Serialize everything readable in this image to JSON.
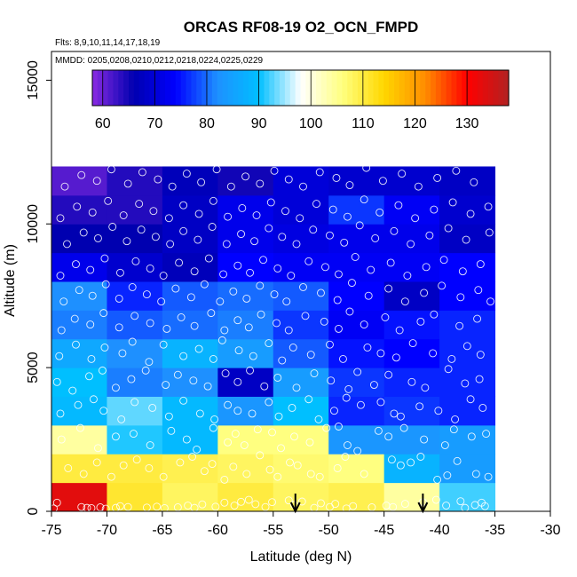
{
  "chart_data": {
    "type": "heatmap",
    "title": "ORCAS RF08-19 O2_OCN_FMPD",
    "annotations": {
      "flights": "Flts: 8,9,10,11,14,17,18,19",
      "dates": "MMDD: 0205,0208,0210,0212,0218,0224,0225,0229"
    },
    "xlabel": "Latitude (deg N)",
    "ylabel": "Altitude (m)",
    "xlim": [
      -75,
      -30
    ],
    "ylim": [
      0,
      16000
    ],
    "xticks": [
      -75,
      -70,
      -65,
      -60,
      -55,
      -50,
      -45,
      -40,
      -35,
      -30
    ],
    "xtick_labels": [
      "-75",
      "-70",
      "-65",
      "-60",
      "-55",
      "-50",
      "-45",
      "-40",
      "-35",
      "-30"
    ],
    "yticks": [
      0,
      5000,
      10000,
      15000
    ],
    "ytick_labels": [
      "0",
      "5000",
      "10000",
      "15000"
    ],
    "colorbar": {
      "min": 58,
      "max": 138,
      "ticks": [
        60,
        70,
        80,
        90,
        100,
        110,
        120,
        130
      ],
      "tick_labels": [
        "60",
        "70",
        "80",
        "90",
        "100",
        "110",
        "120",
        "130"
      ],
      "colors": [
        "#8a2be2",
        "#0000b0",
        "#0000ff",
        "#1e90ff",
        "#00bfff",
        "#ffffff",
        "#ffff80",
        "#ffd700",
        "#ff8c00",
        "#ff0000",
        "#b22222"
      ]
    },
    "lat_bins": [
      -75,
      -70,
      -65,
      -60,
      -55,
      -50,
      -45,
      -40,
      -35
    ],
    "alt_bins": [
      0,
      1000,
      2000,
      3000,
      4000,
      5000,
      6000,
      7000,
      8000,
      9000,
      10000,
      11000,
      12000
    ],
    "cells_by_altitude_row_from_bottom": [
      [
        133,
        111,
        108,
        110,
        108,
        109,
        104,
        92
      ],
      [
        110,
        110,
        109,
        108,
        107,
        106,
        88,
        84
      ],
      [
        104,
        91,
        89,
        106,
        106,
        83,
        83,
        84
      ],
      [
        89,
        93,
        89,
        83,
        90,
        76,
        77,
        76
      ],
      [
        90,
        81,
        82,
        68,
        84,
        77,
        76,
        76
      ],
      [
        86,
        82,
        88,
        84,
        79,
        75,
        74,
        76
      ],
      [
        81,
        79,
        80,
        81,
        77,
        73,
        75,
        76
      ],
      [
        82,
        76,
        79,
        80,
        79,
        74,
        68,
        74
      ],
      [
        72,
        69,
        67,
        74,
        73,
        73,
        73,
        74
      ],
      [
        66,
        66,
        68,
        72,
        71,
        72,
        72,
        68
      ],
      [
        64,
        64,
        68,
        72,
        70,
        77,
        73,
        69
      ],
      [
        61,
        64,
        67,
        65,
        70,
        69,
        69,
        68
      ]
    ],
    "sample_points": [
      [
        -74.8,
        100
      ],
      [
        -74.5,
        300
      ],
      [
        -72.3,
        150
      ],
      [
        -71.8,
        120
      ],
      [
        -71.4,
        110
      ],
      [
        -70.6,
        140
      ],
      [
        -70.1,
        90
      ],
      [
        -69.2,
        120
      ],
      [
        -68.8,
        180
      ],
      [
        -68.1,
        150
      ],
      [
        -66.4,
        130
      ],
      [
        -65.5,
        160
      ],
      [
        -64.8,
        110
      ],
      [
        -63.6,
        140
      ],
      [
        -62.7,
        200
      ],
      [
        -62.1,
        120
      ],
      [
        -61.4,
        240
      ],
      [
        -60.2,
        160
      ],
      [
        -59.4,
        300
      ],
      [
        -58.5,
        200
      ],
      [
        -57.9,
        330
      ],
      [
        -57.2,
        400
      ],
      [
        -56.6,
        250
      ],
      [
        -55.7,
        150
      ],
      [
        -55.1,
        320
      ],
      [
        -53.6,
        380
      ],
      [
        -53.1,
        220
      ],
      [
        -52.4,
        340
      ],
      [
        -51.3,
        120
      ],
      [
        -50.7,
        280
      ],
      [
        -49.9,
        150
      ],
      [
        -49.4,
        260
      ],
      [
        -48.4,
        100
      ],
      [
        -47.8,
        180
      ],
      [
        -46.1,
        140
      ],
      [
        -44.8,
        200
      ],
      [
        -44.2,
        150
      ],
      [
        -43.1,
        260
      ],
      [
        -41.5,
        320
      ],
      [
        -40.3,
        400
      ],
      [
        -39.4,
        200
      ],
      [
        -38.1,
        350
      ],
      [
        -37.7,
        120
      ],
      [
        -36.8,
        220
      ],
      [
        -36.2,
        300
      ],
      [
        -35.9,
        180
      ],
      [
        -73.5,
        1500
      ],
      [
        -72.1,
        1300
      ],
      [
        -70.9,
        1700
      ],
      [
        -69.6,
        1200
      ],
      [
        -68.5,
        1600
      ],
      [
        -67.3,
        1800
      ],
      [
        -66.2,
        1500
      ],
      [
        -64.9,
        1200
      ],
      [
        -63.4,
        1700
      ],
      [
        -62.3,
        1900
      ],
      [
        -61.2,
        1400
      ],
      [
        -60.5,
        1650
      ],
      [
        -59.4,
        1100
      ],
      [
        -58.6,
        1550
      ],
      [
        -57.4,
        1300
      ],
      [
        -56.2,
        1950
      ],
      [
        -55.3,
        1450
      ],
      [
        -54.6,
        1200
      ],
      [
        -53.5,
        1700
      ],
      [
        -52.8,
        1600
      ],
      [
        -51.6,
        1300
      ],
      [
        -50.8,
        1200
      ],
      [
        -49.2,
        1500
      ],
      [
        -48.5,
        1900
      ],
      [
        -46.8,
        1300
      ],
      [
        -44.3,
        1800
      ],
      [
        -43.5,
        1600
      ],
      [
        -42.6,
        1700
      ],
      [
        -41.7,
        1900
      ],
      [
        -40.2,
        1100
      ],
      [
        -39.3,
        1250
      ],
      [
        -38.4,
        1750
      ],
      [
        -36.7,
        1300
      ],
      [
        -35.6,
        1200
      ],
      [
        -74.1,
        2500
      ],
      [
        -72.4,
        2900
      ],
      [
        -70.8,
        2200
      ],
      [
        -69.2,
        2600
      ],
      [
        -67.6,
        2700
      ],
      [
        -66.1,
        2300
      ],
      [
        -64.2,
        2800
      ],
      [
        -62.8,
        2500
      ],
      [
        -61.9,
        2150
      ],
      [
        -60.4,
        2900
      ],
      [
        -59.1,
        2400
      ],
      [
        -58.4,
        2700
      ],
      [
        -57.6,
        2300
      ],
      [
        -56.4,
        2850
      ],
      [
        -55.1,
        2750
      ],
      [
        -54.3,
        2200
      ],
      [
        -53.1,
        2600
      ],
      [
        -51.7,
        2400
      ],
      [
        -50.2,
        2900
      ],
      [
        -49.1,
        2950
      ],
      [
        -48.3,
        2300
      ],
      [
        -47.4,
        2100
      ],
      [
        -45.5,
        2800
      ],
      [
        -44.6,
        2600
      ],
      [
        -43.2,
        2900
      ],
      [
        -41.4,
        2500
      ],
      [
        -39.5,
        2300
      ],
      [
        -38.7,
        2850
      ],
      [
        -37.1,
        2600
      ],
      [
        -35.8,
        2700
      ],
      [
        -74.2,
        3400
      ],
      [
        -72.6,
        3700
      ],
      [
        -71.2,
        3900
      ],
      [
        -70.3,
        3500
      ],
      [
        -68.7,
        3200
      ],
      [
        -67.5,
        3800
      ],
      [
        -65.9,
        3600
      ],
      [
        -64.4,
        3300
      ],
      [
        -63.1,
        3850
      ],
      [
        -61.6,
        3400
      ],
      [
        -60.3,
        3200
      ],
      [
        -59.1,
        3700
      ],
      [
        -58.2,
        3500
      ],
      [
        -56.9,
        3400
      ],
      [
        -55.4,
        3800
      ],
      [
        -54.5,
        3300
      ],
      [
        -53.3,
        3600
      ],
      [
        -51.8,
        3900
      ],
      [
        -50.9,
        3200
      ],
      [
        -49.5,
        3500
      ],
      [
        -48.4,
        3950
      ],
      [
        -47.1,
        3700
      ],
      [
        -45.3,
        3800
      ],
      [
        -44.1,
        3400
      ],
      [
        -43.5,
        3300
      ],
      [
        -41.8,
        3650
      ],
      [
        -40.1,
        3500
      ],
      [
        -38.6,
        3200
      ],
      [
        -37.2,
        3900
      ],
      [
        -36.1,
        3600
      ],
      [
        -74.5,
        4500
      ],
      [
        -73.1,
        4200
      ],
      [
        -71.6,
        4700
      ],
      [
        -70.4,
        4900
      ],
      [
        -69.2,
        4300
      ],
      [
        -67.8,
        4600
      ],
      [
        -66.5,
        4900
      ],
      [
        -64.7,
        4400
      ],
      [
        -63.6,
        4750
      ],
      [
        -62.2,
        4550
      ],
      [
        -60.9,
        4350
      ],
      [
        -59.3,
        4800
      ],
      [
        -58.2,
        4500
      ],
      [
        -57.1,
        4900
      ],
      [
        -55.8,
        4350
      ],
      [
        -54.6,
        4650
      ],
      [
        -52.9,
        4300
      ],
      [
        -51.3,
        4800
      ],
      [
        -49.8,
        4550
      ],
      [
        -48.2,
        4250
      ],
      [
        -47.4,
        4850
      ],
      [
        -45.9,
        4400
      ],
      [
        -44.6,
        4750
      ],
      [
        -42.5,
        4500
      ],
      [
        -41.3,
        4300
      ],
      [
        -39.2,
        4950
      ],
      [
        -37.7,
        4450
      ],
      [
        -36.4,
        4600
      ],
      [
        -74.3,
        5400
      ],
      [
        -72.8,
        5800
      ],
      [
        -71.4,
        5300
      ],
      [
        -70.2,
        5700
      ],
      [
        -68.6,
        5500
      ],
      [
        -67.7,
        5900
      ],
      [
        -66.2,
        5200
      ],
      [
        -64.9,
        5800
      ],
      [
        -63.1,
        5400
      ],
      [
        -61.7,
        5650
      ],
      [
        -60.4,
        5300
      ],
      [
        -59.6,
        5950
      ],
      [
        -58.1,
        5600
      ],
      [
        -56.8,
        5400
      ],
      [
        -55.4,
        5850
      ],
      [
        -54.2,
        5250
      ],
      [
        -53.2,
        5700
      ],
      [
        -51.6,
        5450
      ],
      [
        -49.9,
        5800
      ],
      [
        -48.7,
        5300
      ],
      [
        -46.5,
        5700
      ],
      [
        -45.3,
        5500
      ],
      [
        -43.9,
        5350
      ],
      [
        -42.4,
        5850
      ],
      [
        -40.6,
        5500
      ],
      [
        -38.9,
        5300
      ],
      [
        -37.5,
        5750
      ],
      [
        -36.3,
        5450
      ],
      [
        -74.1,
        6300
      ],
      [
        -72.9,
        6700
      ],
      [
        -71.5,
        6500
      ],
      [
        -70.3,
        6900
      ],
      [
        -68.9,
        6400
      ],
      [
        -67.5,
        6800
      ],
      [
        -66.1,
        6550
      ],
      [
        -64.6,
        6350
      ],
      [
        -63.3,
        6750
      ],
      [
        -62.1,
        6450
      ],
      [
        -60.6,
        6900
      ],
      [
        -59.4,
        6300
      ],
      [
        -58.2,
        6650
      ],
      [
        -57.2,
        6400
      ],
      [
        -56.1,
        6850
      ],
      [
        -54.7,
        6550
      ],
      [
        -53.6,
        6300
      ],
      [
        -52.1,
        6800
      ],
      [
        -50.4,
        6600
      ],
      [
        -49.1,
        6350
      ],
      [
        -48.1,
        6950
      ],
      [
        -46.8,
        6500
      ],
      [
        -44.9,
        6750
      ],
      [
        -43.6,
        6300
      ],
      [
        -41.7,
        6600
      ],
      [
        -40.5,
        6850
      ],
      [
        -38.2,
        6450
      ],
      [
        -36.6,
        6700
      ],
      [
        -73.9,
        7300
      ],
      [
        -72.5,
        7700
      ],
      [
        -71.3,
        7500
      ],
      [
        -70.1,
        7900
      ],
      [
        -68.9,
        7400
      ],
      [
        -67.7,
        7800
      ],
      [
        -66.4,
        7550
      ],
      [
        -65.1,
        7300
      ],
      [
        -63.8,
        7750
      ],
      [
        -62.4,
        7450
      ],
      [
        -61.2,
        7900
      ],
      [
        -59.8,
        7300
      ],
      [
        -58.6,
        7650
      ],
      [
        -57.4,
        7400
      ],
      [
        -56.2,
        7850
      ],
      [
        -54.9,
        7550
      ],
      [
        -53.8,
        7300
      ],
      [
        -52.3,
        7800
      ],
      [
        -50.7,
        7600
      ],
      [
        -49.2,
        7350
      ],
      [
        -47.9,
        7950
      ],
      [
        -46.4,
        7500
      ],
      [
        -44.6,
        7750
      ],
      [
        -43.1,
        7300
      ],
      [
        -41.4,
        7600
      ],
      [
        -39.8,
        7850
      ],
      [
        -38.1,
        7450
      ],
      [
        -36.5,
        7700
      ],
      [
        -35.4,
        7300
      ],
      [
        -74.2,
        8200
      ],
      [
        -72.8,
        8600
      ],
      [
        -71.5,
        8400
      ],
      [
        -70.2,
        8800
      ],
      [
        -68.8,
        8300
      ],
      [
        -67.4,
        8700
      ],
      [
        -66.1,
        8450
      ],
      [
        -64.9,
        8200
      ],
      [
        -63.5,
        8650
      ],
      [
        -62.1,
        8350
      ],
      [
        -60.8,
        8800
      ],
      [
        -59.5,
        8250
      ],
      [
        -58.2,
        8550
      ],
      [
        -57.1,
        8300
      ],
      [
        -55.9,
        8750
      ],
      [
        -54.6,
        8450
      ],
      [
        -53.4,
        8200
      ],
      [
        -51.8,
        8700
      ],
      [
        -50.3,
        8500
      ],
      [
        -49.1,
        8250
      ],
      [
        -47.6,
        8850
      ],
      [
        -46.2,
        8400
      ],
      [
        -44.4,
        8650
      ],
      [
        -42.9,
        8200
      ],
      [
        -41.2,
        8500
      ],
      [
        -39.6,
        8750
      ],
      [
        -37.9,
        8350
      ],
      [
        -36.3,
        8600
      ],
      [
        -73.6,
        9300
      ],
      [
        -72.1,
        9700
      ],
      [
        -70.8,
        9500
      ],
      [
        -69.5,
        9900
      ],
      [
        -68.2,
        9400
      ],
      [
        -66.9,
        9800
      ],
      [
        -65.6,
        9550
      ],
      [
        -64.3,
        9300
      ],
      [
        -63.1,
        9750
      ],
      [
        -61.8,
        9450
      ],
      [
        -60.5,
        9900
      ],
      [
        -59.2,
        9300
      ],
      [
        -57.9,
        9650
      ],
      [
        -56.7,
        9400
      ],
      [
        -55.4,
        9850
      ],
      [
        -54.2,
        9550
      ],
      [
        -52.9,
        9300
      ],
      [
        -51.4,
        9800
      ],
      [
        -49.9,
        9600
      ],
      [
        -48.6,
        9350
      ],
      [
        -47.2,
        9950
      ],
      [
        -45.8,
        9500
      ],
      [
        -44.1,
        9750
      ],
      [
        -42.6,
        9300
      ],
      [
        -40.9,
        9600
      ],
      [
        -39.2,
        9850
      ],
      [
        -37.6,
        9450
      ],
      [
        -35.5,
        9700
      ],
      [
        -74.2,
        10200
      ],
      [
        -72.7,
        10600
      ],
      [
        -71.3,
        10400
      ],
      [
        -69.9,
        10800
      ],
      [
        -68.5,
        10300
      ],
      [
        -67.1,
        10700
      ],
      [
        -65.8,
        10450
      ],
      [
        -64.4,
        10200
      ],
      [
        -63.1,
        10650
      ],
      [
        -61.7,
        10350
      ],
      [
        -60.4,
        10800
      ],
      [
        -59.1,
        10250
      ],
      [
        -57.8,
        10550
      ],
      [
        -56.5,
        10300
      ],
      [
        -55.2,
        10750
      ],
      [
        -53.9,
        10450
      ],
      [
        -52.6,
        10200
      ],
      [
        -51.1,
        10700
      ],
      [
        -49.6,
        10500
      ],
      [
        -48.3,
        10250
      ],
      [
        -46.8,
        10850
      ],
      [
        -45.4,
        10400
      ],
      [
        -43.7,
        10650
      ],
      [
        -42.2,
        10200
      ],
      [
        -40.5,
        10500
      ],
      [
        -38.8,
        10750
      ],
      [
        -37.2,
        10350
      ],
      [
        -35.6,
        10600
      ],
      [
        -73.8,
        11300
      ],
      [
        -72.3,
        11700
      ],
      [
        -70.9,
        11500
      ],
      [
        -69.6,
        11900
      ],
      [
        -68.1,
        11400
      ],
      [
        -66.8,
        11800
      ],
      [
        -65.4,
        11550
      ],
      [
        -64.1,
        11300
      ],
      [
        -62.8,
        11750
      ],
      [
        -61.5,
        11450
      ],
      [
        -60.1,
        11900
      ],
      [
        -58.8,
        11300
      ],
      [
        -57.5,
        11650
      ],
      [
        -56.2,
        11400
      ],
      [
        -54.9,
        11850
      ],
      [
        -53.6,
        11550
      ],
      [
        -52.3,
        11300
      ],
      [
        -50.8,
        11800
      ],
      [
        -49.3,
        11600
      ],
      [
        -48.1,
        11350
      ],
      [
        -46.6,
        11950
      ],
      [
        -45.1,
        11500
      ],
      [
        -43.4,
        11750
      ],
      [
        -41.9,
        11300
      ],
      [
        -40.2,
        11600
      ],
      [
        -38.5,
        11850
      ],
      [
        -36.9,
        11450
      ]
    ],
    "arrows_at_latitude": [
      -53,
      -41.5
    ]
  }
}
